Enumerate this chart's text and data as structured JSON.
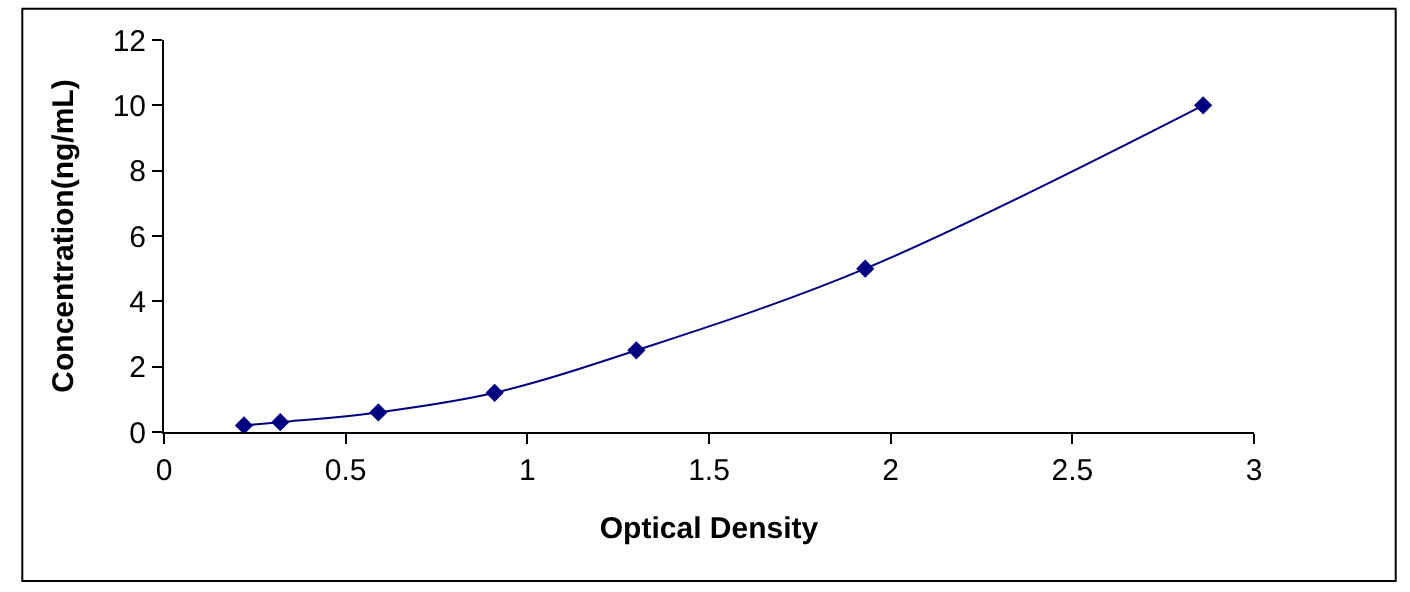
{
  "chart_data": {
    "type": "line",
    "xlabel": "Optical Density",
    "ylabel": "Concentration(ng/mL)",
    "x": [
      0.22,
      0.32,
      0.59,
      0.91,
      1.3,
      1.93,
      2.86
    ],
    "series": [
      {
        "color": "#000080",
        "values": [
          0.2,
          0.3,
          0.6,
          1.2,
          2.5,
          5,
          10
        ]
      }
    ],
    "xlim": [
      0,
      3
    ],
    "xticks": [
      0,
      0.5,
      1,
      1.5,
      2,
      2.5,
      3
    ],
    "ylim": [
      0,
      12
    ],
    "yticks": [
      0,
      2,
      4,
      6,
      8,
      10,
      12
    ],
    "legend": false,
    "marker": "diamond",
    "line_style": "solid"
  }
}
